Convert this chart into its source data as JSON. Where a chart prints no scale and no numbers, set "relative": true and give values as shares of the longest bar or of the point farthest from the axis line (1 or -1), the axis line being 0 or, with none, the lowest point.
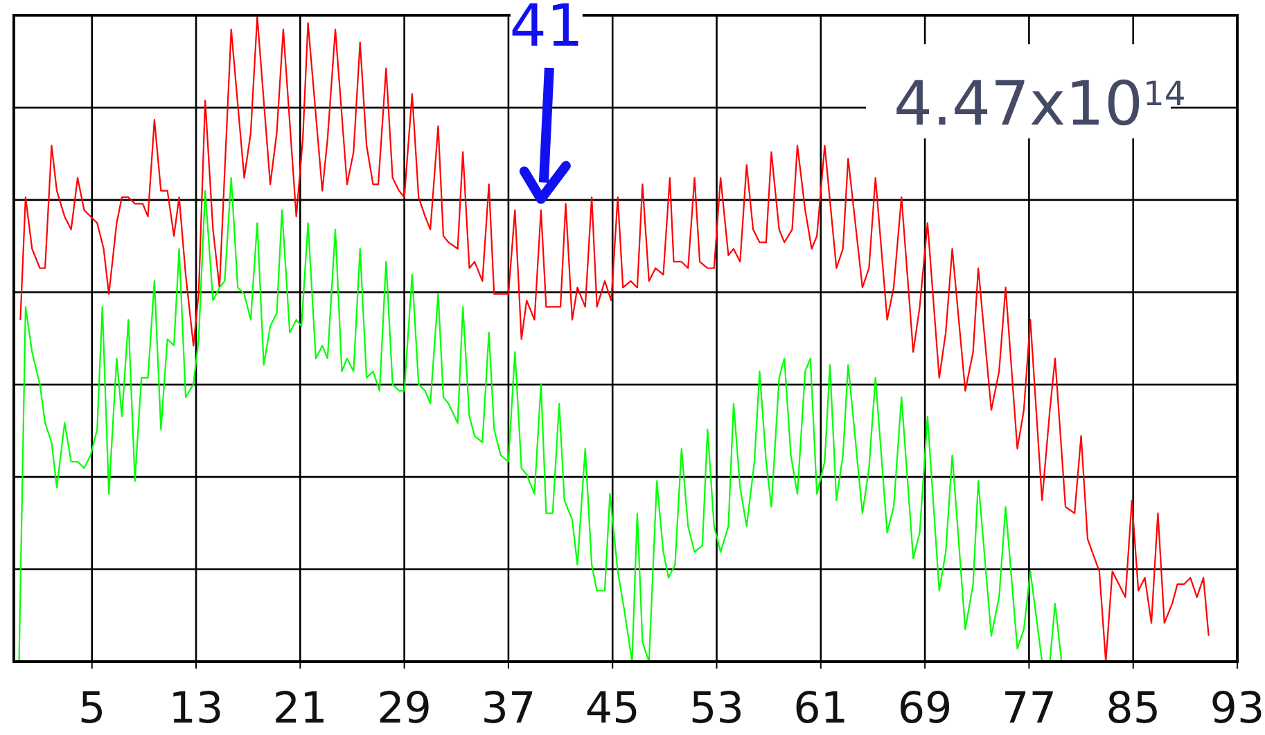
{
  "chart_data": {
    "type": "line",
    "relative": true,
    "grid": true,
    "line_style": "solid",
    "xlim": [
      -1,
      93
    ],
    "xticks": [
      5,
      13,
      21,
      29,
      37,
      45,
      53,
      61,
      69,
      77,
      85,
      93
    ],
    "annotations": [
      {
        "text": "41",
        "x": 39.5,
        "y": 0.7
      },
      "4.47x10$^{14}$"
    ],
    "series": [
      {
        "color": "#ff0000",
        "x": [
          -0.5,
          -0.1,
          0.4,
          1.0,
          1.4,
          1.9,
          2.3,
          2.9,
          3.4,
          3.9,
          4.4,
          4.9,
          5.4,
          5.9,
          6.3,
          6.9,
          7.3,
          7.8,
          8.3,
          8.9,
          9.3,
          9.8,
          10.3,
          10.8,
          11.3,
          11.7,
          12.2,
          12.8,
          13.2,
          13.7,
          14.3,
          14.8,
          15.2,
          15.7,
          16.7,
          17.2,
          17.7,
          18.7,
          19.2,
          19.7,
          20.7,
          21.2,
          21.6,
          22.7,
          23.1,
          23.7,
          24.6,
          25.1,
          25.6,
          26.1,
          26.6,
          27.0,
          27.6,
          28.1,
          28.6,
          29.0,
          29.6,
          30.1,
          30.6,
          31.0,
          31.6,
          32.0,
          32.4,
          33.1,
          33.5,
          34.0,
          34.4,
          35.0,
          35.5,
          35.9,
          36.4,
          37.0,
          37.5,
          38.0,
          38.4,
          39.0,
          39.5,
          39.9,
          40.4,
          41.0,
          41.4,
          41.9,
          42.3,
          42.9,
          43.4,
          43.8,
          44.4,
          44.9,
          45.4,
          45.8,
          46.4,
          46.9,
          47.3,
          47.8,
          48.3,
          48.9,
          49.4,
          49.7,
          50.3,
          50.8,
          51.3,
          51.7,
          52.3,
          52.8,
          53.3,
          53.9,
          54.3,
          54.8,
          55.3,
          55.8,
          56.3,
          56.8,
          57.2,
          57.8,
          58.2,
          58.8,
          59.2,
          59.8,
          60.3,
          60.7,
          61.3,
          62.2,
          62.7,
          63.1,
          64.2,
          64.7,
          65.2,
          66.1,
          66.6,
          67.2,
          68.1,
          68.6,
          69.2,
          70.1,
          70.6,
          71.1,
          72.1,
          72.7,
          73.1,
          74.1,
          74.7,
          75.2,
          76.1,
          76.6,
          77.1,
          78.0,
          78.6,
          79.0,
          79.8,
          80.5,
          81.0,
          81.5,
          82.4,
          82.9,
          83.4,
          84.4,
          84.9,
          85.4,
          85.9,
          86.4,
          86.9,
          87.4,
          88.0,
          88.4,
          88.9,
          89.4,
          89.9,
          90.4,
          90.8
        ],
        "values": [
          0.53,
          0.72,
          0.64,
          0.61,
          0.61,
          0.8,
          0.73,
          0.69,
          0.67,
          0.75,
          0.7,
          0.69,
          0.68,
          0.64,
          0.57,
          0.68,
          0.72,
          0.72,
          0.71,
          0.71,
          0.69,
          0.84,
          0.73,
          0.73,
          0.66,
          0.72,
          0.6,
          0.49,
          0.57,
          0.87,
          0.67,
          0.58,
          0.76,
          0.98,
          0.75,
          0.82,
          1.0,
          0.74,
          0.82,
          0.98,
          0.69,
          0.81,
          0.99,
          0.73,
          0.81,
          0.98,
          0.74,
          0.79,
          0.96,
          0.8,
          0.74,
          0.74,
          0.92,
          0.75,
          0.73,
          0.72,
          0.88,
          0.72,
          0.69,
          0.67,
          0.83,
          0.66,
          0.65,
          0.64,
          0.79,
          0.61,
          0.62,
          0.59,
          0.74,
          0.57,
          0.57,
          0.57,
          0.7,
          0.5,
          0.56,
          0.53,
          0.7,
          0.55,
          0.55,
          0.55,
          0.71,
          0.53,
          0.58,
          0.55,
          0.72,
          0.55,
          0.59,
          0.56,
          0.72,
          0.58,
          0.59,
          0.58,
          0.74,
          0.59,
          0.61,
          0.6,
          0.75,
          0.62,
          0.62,
          0.61,
          0.75,
          0.62,
          0.61,
          0.61,
          0.75,
          0.63,
          0.64,
          0.62,
          0.77,
          0.67,
          0.65,
          0.65,
          0.79,
          0.67,
          0.65,
          0.67,
          0.8,
          0.7,
          0.64,
          0.66,
          0.8,
          0.61,
          0.64,
          0.78,
          0.58,
          0.61,
          0.75,
          0.53,
          0.58,
          0.72,
          0.48,
          0.55,
          0.68,
          0.44,
          0.51,
          0.64,
          0.42,
          0.48,
          0.61,
          0.39,
          0.45,
          0.58,
          0.33,
          0.39,
          0.53,
          0.25,
          0.39,
          0.47,
          0.24,
          0.23,
          0.35,
          0.19,
          0.14,
          0.0,
          0.14,
          0.1,
          0.25,
          0.11,
          0.13,
          0.06,
          0.23,
          0.06,
          0.09,
          0.12,
          0.12,
          0.13,
          0.1,
          0.13,
          0.04
        ]
      },
      {
        "color": "#00ff00",
        "x": [
          -0.6,
          -0.1,
          0.4,
          1.0,
          1.4,
          1.9,
          2.3,
          2.9,
          3.4,
          3.9,
          4.4,
          4.9,
          5.4,
          5.8,
          6.3,
          6.9,
          7.3,
          7.8,
          8.3,
          8.8,
          9.3,
          9.8,
          10.3,
          10.8,
          11.3,
          11.7,
          12.2,
          12.8,
          13.2,
          13.7,
          14.3,
          14.8,
          15.2,
          15.7,
          16.2,
          16.7,
          17.2,
          17.7,
          18.2,
          18.7,
          19.2,
          19.6,
          20.2,
          20.7,
          21.1,
          21.6,
          22.2,
          22.7,
          23.1,
          23.7,
          24.2,
          24.6,
          25.1,
          25.6,
          26.1,
          26.6,
          27.1,
          27.6,
          28.1,
          28.6,
          29.0,
          29.6,
          30.1,
          30.6,
          31.0,
          31.6,
          32.0,
          32.4,
          33.1,
          33.5,
          34.0,
          34.4,
          35.0,
          35.5,
          35.9,
          36.4,
          37.0,
          37.5,
          38.0,
          38.4,
          39.0,
          39.5,
          39.9,
          40.4,
          40.9,
          41.3,
          41.9,
          42.3,
          42.9,
          43.4,
          43.8,
          44.4,
          44.8,
          45.4,
          45.9,
          46.5,
          46.9,
          47.3,
          47.8,
          48.4,
          48.9,
          49.3,
          49.8,
          50.3,
          50.8,
          51.3,
          51.9,
          52.3,
          52.8,
          53.3,
          53.9,
          54.3,
          54.8,
          55.3,
          55.9,
          56.3,
          56.8,
          57.2,
          57.8,
          58.2,
          58.7,
          59.2,
          59.8,
          60.2,
          60.7,
          61.3,
          61.7,
          62.2,
          62.7,
          63.1,
          64.2,
          64.7,
          65.2,
          66.1,
          66.6,
          67.2,
          68.1,
          68.6,
          69.2,
          70.1,
          70.6,
          71.1,
          72.1,
          72.7,
          73.1,
          74.1,
          74.7,
          75.2,
          76.1,
          76.6,
          77.1,
          78.0,
          78.6,
          79.0,
          79.5
        ],
        "values": [
          0,
          0.55,
          0.48,
          0.43,
          0.37,
          0.34,
          0.27,
          0.37,
          0.31,
          0.31,
          0.3,
          0.32,
          0.36,
          0.55,
          0.26,
          0.47,
          0.38,
          0.53,
          0.28,
          0.44,
          0.44,
          0.59,
          0.36,
          0.5,
          0.49,
          0.64,
          0.41,
          0.43,
          0.5,
          0.73,
          0.56,
          0.58,
          0.59,
          0.75,
          0.58,
          0.57,
          0.53,
          0.68,
          0.46,
          0.52,
          0.54,
          0.7,
          0.51,
          0.53,
          0.52,
          0.68,
          0.47,
          0.49,
          0.47,
          0.67,
          0.45,
          0.47,
          0.45,
          0.64,
          0.44,
          0.45,
          0.42,
          0.62,
          0.43,
          0.42,
          0.42,
          0.6,
          0.43,
          0.42,
          0.4,
          0.57,
          0.41,
          0.4,
          0.37,
          0.55,
          0.38,
          0.35,
          0.34,
          0.51,
          0.36,
          0.32,
          0.31,
          0.48,
          0.3,
          0.29,
          0.26,
          0.43,
          0.23,
          0.23,
          0.4,
          0.25,
          0.22,
          0.15,
          0.33,
          0.15,
          0.11,
          0.11,
          0.26,
          0.14,
          0.08,
          0,
          0.23,
          0.03,
          0,
          0.28,
          0.17,
          0.13,
          0.15,
          0.33,
          0.21,
          0.17,
          0.18,
          0.36,
          0.21,
          0.17,
          0.21,
          0.4,
          0.27,
          0.21,
          0.31,
          0.45,
          0.31,
          0.24,
          0.44,
          0.47,
          0.32,
          0.26,
          0.45,
          0.47,
          0.26,
          0.31,
          0.46,
          0.25,
          0.32,
          0.46,
          0.23,
          0.3,
          0.44,
          0.2,
          0.24,
          0.41,
          0.16,
          0.2,
          0.38,
          0.11,
          0.17,
          0.32,
          0.05,
          0.12,
          0.28,
          0.04,
          0.1,
          0.24,
          0.02,
          0.05,
          0.14,
          0,
          0,
          0.09,
          0
        ]
      }
    ]
  }
}
